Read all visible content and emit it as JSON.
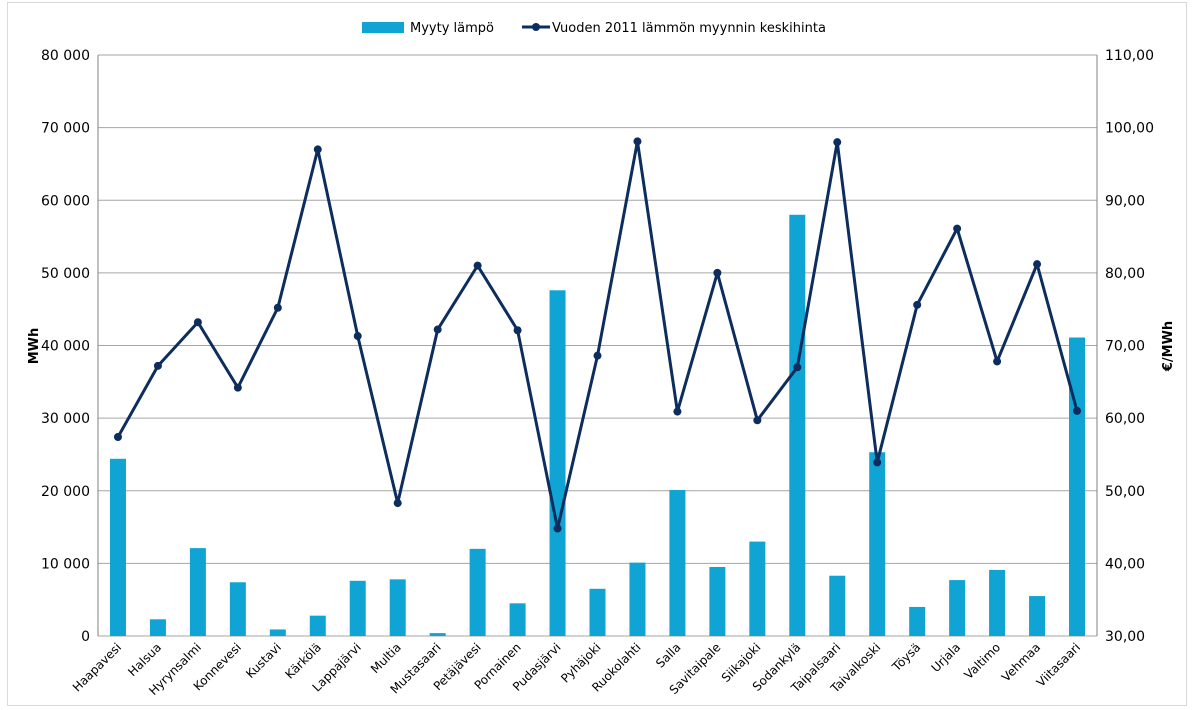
{
  "chart_data": {
    "type": "bar",
    "categories": [
      "Haapavesi",
      "Halsua",
      "Hyrynsalmi",
      "Konnevesi",
      "Kustavi",
      "Kärkölä",
      "Lappajärvi",
      "Multia",
      "Mustasaari",
      "Petäjävesi",
      "Pornainen",
      "Pudasjärvi",
      "Pyhäjoki",
      "Ruokolahti",
      "Salla",
      "Savitaipale",
      "Siikajoki",
      "Sodankylä",
      "Taipalsaari",
      "Taivalkoski",
      "Töysä",
      "Urjala",
      "Valtimo",
      "Vehmaa",
      "Viitasaari"
    ],
    "series": [
      {
        "name": "Myyty lämpö",
        "type": "bar",
        "axis": "left",
        "color": "#0fa4d4",
        "values": [
          24400,
          2300,
          12100,
          7400,
          900,
          2800,
          7600,
          7800,
          400,
          12000,
          4500,
          47600,
          6500,
          10100,
          20100,
          9500,
          13000,
          58000,
          8300,
          25300,
          4000,
          7700,
          9100,
          5500,
          41100
        ]
      },
      {
        "name": "Vuoden 2011 lämmön myynnin keskihinta",
        "type": "line",
        "axis": "right",
        "color": "#0c2d5e",
        "values": [
          57.4,
          67.2,
          73.2,
          64.2,
          75.2,
          97.0,
          71.3,
          48.3,
          72.2,
          81.0,
          72.1,
          44.8,
          68.6,
          98.1,
          60.9,
          80.0,
          59.7,
          67.0,
          98.0,
          53.9,
          75.6,
          86.1,
          67.8,
          81.2,
          61.0
        ]
      }
    ],
    "ylabel": "MWh",
    "y2label": "€/MWh",
    "ylim": [
      0,
      80000
    ],
    "y2lim": [
      30,
      110
    ],
    "yticks": [
      "0",
      "10 000",
      "20 000",
      "30 000",
      "40 000",
      "50 000",
      "60 000",
      "70 000",
      "80 000"
    ],
    "y2ticks": [
      "30,00",
      "40,00",
      "50,00",
      "60,00",
      "70,00",
      "80,00",
      "90,00",
      "100,00",
      "110,00"
    ],
    "grid": true,
    "legend": "top"
  }
}
